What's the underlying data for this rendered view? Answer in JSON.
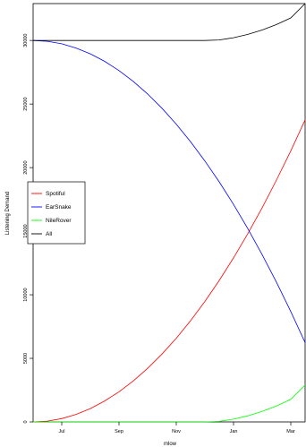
{
  "chart_data": {
    "type": "line",
    "xlabel": "mlow",
    "ylabel": "Listening Demand",
    "x_ticks": [
      "Jul",
      "Sep",
      "Nov",
      "Jan",
      "Mar"
    ],
    "x_tick_positions": [
      3,
      5,
      7,
      9,
      11
    ],
    "y_ticks": [
      "0",
      "5000",
      "10000",
      "15000",
      "20000",
      "25000",
      "30000"
    ],
    "y_tick_values": [
      0,
      5000,
      10000,
      15000,
      20000,
      25000,
      30000
    ],
    "xlim": [
      2,
      11.5
    ],
    "ylim": [
      0,
      32900
    ],
    "grid": false,
    "legend_position": "left",
    "x": [
      2.0,
      2.5,
      3.0,
      3.5,
      4.0,
      4.5,
      5.0,
      5.5,
      6.0,
      6.5,
      7.0,
      7.5,
      8.0,
      8.5,
      9.0,
      9.5,
      10.0,
      10.5,
      11.0,
      11.5
    ],
    "series": [
      {
        "name": "Spotiful",
        "color": "#ff0000",
        "values": [
          0,
          66,
          263,
          592,
          1053,
          1645,
          2369,
          3224,
          4211,
          5330,
          6580,
          7962,
          9476,
          11121,
          12898,
          14806,
          16846,
          19018,
          21321,
          23756
        ]
      },
      {
        "name": "EarSnake",
        "color": "#0000ff",
        "values": [
          30000,
          29934,
          29737,
          29408,
          28947,
          28355,
          27631,
          26776,
          25789,
          24670,
          23420,
          22038,
          20524,
          18879,
          17102,
          15194,
          13154,
          10982,
          8679,
          6244
        ]
      },
      {
        "name": "NileRover",
        "color": "#00ff00",
        "values": [
          0,
          0,
          0,
          0,
          0,
          0,
          0,
          0,
          0,
          0,
          0,
          0,
          0,
          43,
          216,
          476,
          822,
          1255,
          1775,
          2900
        ]
      },
      {
        "name": "All",
        "color": "#000000",
        "values": [
          30000,
          30000,
          30000,
          30000,
          30000,
          30000,
          30000,
          30000,
          30000,
          30000,
          30000,
          30000,
          30000,
          30043,
          30216,
          30476,
          30822,
          31255,
          31775,
          32900
        ]
      }
    ]
  }
}
